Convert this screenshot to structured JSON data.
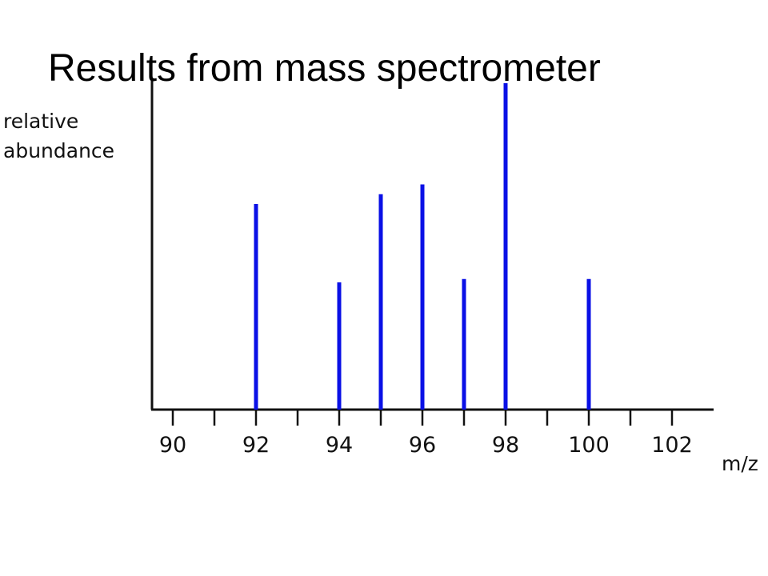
{
  "title": "Results from mass spectrometer",
  "chart_data": {
    "type": "bar",
    "title": "Results from mass spectrometer",
    "xlabel": "m/z",
    "ylabel_lines": [
      "relative",
      "abundance"
    ],
    "x_ticks": [
      90,
      91,
      92,
      93,
      94,
      95,
      96,
      97,
      98,
      99,
      100,
      101,
      102
    ],
    "x_tick_labels": [
      "90",
      "92",
      "94",
      "96",
      "98",
      "100",
      "102"
    ],
    "xlim": [
      89.5,
      103
    ],
    "ylim": [
      0,
      100
    ],
    "grid": false,
    "series": [
      {
        "color": "#0a10e6",
        "points": [
          {
            "x": 92,
            "y": 63
          },
          {
            "x": 94,
            "y": 39
          },
          {
            "x": 95,
            "y": 66
          },
          {
            "x": 96,
            "y": 69
          },
          {
            "x": 97,
            "y": 40
          },
          {
            "x": 98,
            "y": 100
          },
          {
            "x": 100,
            "y": 40
          }
        ]
      }
    ]
  }
}
